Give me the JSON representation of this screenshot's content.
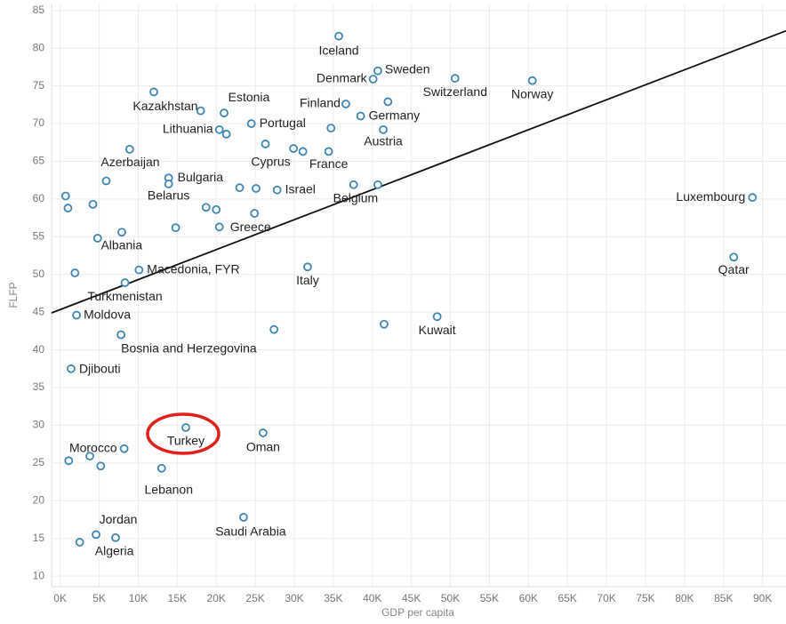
{
  "chart_data": {
    "type": "scatter",
    "x_label": "GDP per capita",
    "y_label": "FLFP",
    "xlim": [
      -1100,
      93000
    ],
    "ylim": [
      8.6,
      85.8
    ],
    "xticks": [
      {
        "value": 0,
        "label": "0K"
      },
      {
        "value": 5000,
        "label": "5K"
      },
      {
        "value": 10000,
        "label": "10K"
      },
      {
        "value": 15000,
        "label": "15K"
      },
      {
        "value": 20000,
        "label": "20K"
      },
      {
        "value": 25000,
        "label": "25K"
      },
      {
        "value": 30000,
        "label": "30K"
      },
      {
        "value": 35000,
        "label": "35K"
      },
      {
        "value": 40000,
        "label": "40K"
      },
      {
        "value": 45000,
        "label": "45K"
      },
      {
        "value": 50000,
        "label": "50K"
      },
      {
        "value": 55000,
        "label": "55K"
      },
      {
        "value": 60000,
        "label": "60K"
      },
      {
        "value": 65000,
        "label": "65K"
      },
      {
        "value": 70000,
        "label": "70K"
      },
      {
        "value": 75000,
        "label": "75K"
      },
      {
        "value": 80000,
        "label": "80K"
      },
      {
        "value": 85000,
        "label": "85K"
      },
      {
        "value": 90000,
        "label": "90K"
      }
    ],
    "yticks": [
      10,
      15,
      20,
      25,
      30,
      35,
      40,
      45,
      50,
      55,
      60,
      65,
      70,
      75,
      80,
      85
    ],
    "grid": true,
    "color": "#3f86b3",
    "trend_line": {
      "x": [
        -1100,
        93000
      ],
      "y": [
        44.9,
        82.3
      ],
      "color": "#111111"
    },
    "labels": [
      "Iceland",
      "Denmark",
      "Sweden",
      "Switzerland",
      "Norway",
      "Kazakhstan",
      "Estonia",
      null,
      "Finland",
      null,
      "Germany",
      "Portugal",
      "Lithuania",
      null,
      null,
      "Austria",
      null,
      "Cyprus",
      null,
      null,
      "France",
      "Azerbaijan",
      "Bulgaria",
      "Belarus",
      null,
      null,
      "Israel",
      null,
      "Belgium",
      null,
      null,
      null,
      null,
      null,
      null,
      "Greece",
      null,
      null,
      "Albania",
      "Luxembourg",
      "Qatar",
      null,
      "Macedonia, FYR",
      "Turkmenistan",
      "Italy",
      "Moldova",
      "Kuwait",
      null,
      null,
      "Bosnia and Herzegovina",
      "Djibouti",
      "Turkey",
      "Oman",
      "Morocco",
      null,
      null,
      null,
      "Lebanon",
      "Saudi Arabia",
      "Jordan",
      null,
      "Algeria"
    ],
    "x": [
      35700,
      40100,
      40700,
      50600,
      60500,
      12000,
      21000,
      18000,
      36600,
      42000,
      38500,
      24500,
      20400,
      21300,
      34700,
      41400,
      8900,
      26300,
      29900,
      31100,
      34400,
      5900,
      13900,
      13900,
      23000,
      25100,
      27800,
      37600,
      40700,
      700,
      1000,
      4200,
      18700,
      20000,
      24900,
      20400,
      14800,
      7900,
      4800,
      88700,
      86300,
      1900,
      10100,
      8300,
      31700,
      2100,
      48300,
      27400,
      41500,
      7800,
      1400,
      16100,
      26000,
      8200,
      1100,
      3800,
      5200,
      13000,
      23500,
      4600,
      7100,
      2500
    ],
    "values": [
      81.6,
      75.9,
      77.0,
      76.0,
      75.7,
      74.2,
      71.4,
      71.7,
      72.6,
      72.9,
      71.0,
      70.0,
      69.2,
      68.6,
      69.4,
      69.2,
      66.6,
      67.3,
      66.7,
      66.3,
      66.3,
      62.4,
      62.8,
      62.0,
      61.5,
      61.4,
      61.2,
      61.9,
      61.9,
      60.4,
      58.8,
      59.3,
      58.9,
      58.6,
      58.1,
      56.3,
      56.2,
      55.6,
      54.8,
      60.2,
      52.3,
      50.2,
      50.6,
      48.9,
      51.0,
      44.6,
      44.4,
      42.7,
      43.4,
      42.0,
      37.5,
      29.7,
      29.0,
      26.9,
      25.3,
      25.9,
      24.6,
      24.3,
      17.8,
      15.5,
      15.1,
      14.5
    ]
  }
}
